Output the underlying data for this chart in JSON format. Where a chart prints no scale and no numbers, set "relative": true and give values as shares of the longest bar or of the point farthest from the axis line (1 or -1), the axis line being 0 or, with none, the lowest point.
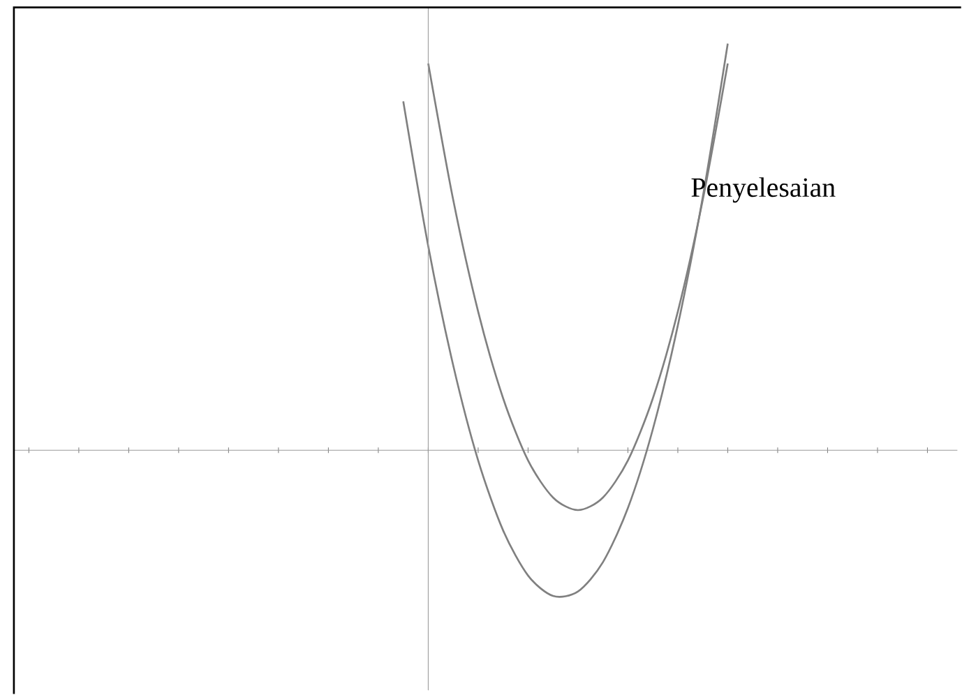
{
  "chart_data": {
    "type": "line",
    "relative": true,
    "categories": [
      null,
      null,
      null,
      null,
      null,
      null,
      null,
      null,
      null,
      null,
      null,
      null,
      null,
      null,
      null,
      null,
      null,
      null,
      null,
      null,
      null,
      null,
      null,
      null,
      null,
      null,
      null,
      null,
      null,
      null,
      null,
      null,
      null,
      null,
      null,
      null,
      null,
      null,
      null
    ],
    "series": [
      {
        "color": "#808080",
        "values": [
          null,
          null,
          null,
          null,
          null,
          null,
          null,
          null,
          null,
          null,
          null,
          null,
          null,
          null,
          null,
          null,
          0.951,
          0.616,
          0.341,
          0.128,
          -0.025,
          -0.116,
          -0.147,
          -0.116,
          -0.025,
          0.128,
          0.341,
          0.616,
          0.951,
          null,
          null,
          null,
          null,
          null,
          null,
          null,
          null,
          null,
          null
        ]
      },
      {
        "color": "#808080",
        "values": [
          null,
          null,
          null,
          null,
          null,
          null,
          null,
          null,
          null,
          null,
          null,
          null,
          null,
          null,
          null,
          0.858,
          0.502,
          0.209,
          -0.025,
          -0.197,
          -0.308,
          -0.358,
          -0.347,
          -0.275,
          -0.142,
          0.052,
          0.307,
          0.623,
          1.0,
          null,
          null,
          null,
          null,
          null,
          null,
          null,
          null,
          null,
          null
        ]
      }
    ],
    "annotations": [
      "Penyelesaian"
    ],
    "grid": false,
    "tick_labels": false,
    "marker": "none",
    "line_style": "solid"
  }
}
